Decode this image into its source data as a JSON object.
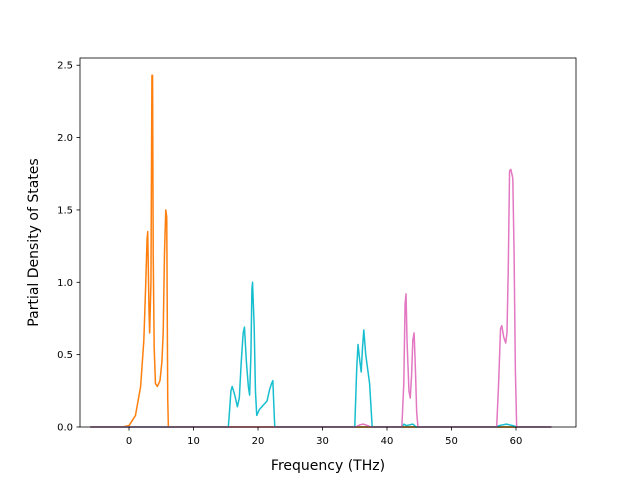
{
  "chart_data": {
    "type": "line",
    "title": "",
    "xlabel": "Frequency (THz)",
    "ylabel": "Partial Density of States",
    "xlim": [
      -7.6,
      69.3
    ],
    "ylim": [
      0,
      2.55
    ],
    "xticks": [
      0,
      10,
      20,
      30,
      40,
      50,
      60
    ],
    "yticks": [
      0.0,
      0.5,
      1.0,
      1.5,
      2.0,
      2.5
    ],
    "xtick_labels": [
      "0",
      "10",
      "20",
      "30",
      "40",
      "50",
      "60"
    ],
    "ytick_labels": [
      "0.0",
      "0.5",
      "1.0",
      "1.5",
      "2.0",
      "2.5"
    ],
    "grid": false,
    "legend": "none",
    "series": [
      {
        "color": "#2ca02c",
        "points": [
          [
            -6,
            0
          ],
          [
            65.5,
            0
          ]
        ]
      },
      {
        "color": "#ff7f0e",
        "points": [
          [
            -6,
            0
          ],
          [
            -1,
            0
          ],
          [
            0,
            0.01
          ],
          [
            1,
            0.08
          ],
          [
            1.8,
            0.28
          ],
          [
            2.3,
            0.6
          ],
          [
            2.6,
            1.0
          ],
          [
            2.8,
            1.3
          ],
          [
            2.9,
            1.35
          ],
          [
            3.1,
            0.8
          ],
          [
            3.2,
            0.65
          ],
          [
            3.4,
            1.0
          ],
          [
            3.55,
            2.43
          ],
          [
            3.65,
            2.43
          ],
          [
            3.75,
            1.2
          ],
          [
            3.9,
            0.55
          ],
          [
            4.1,
            0.3
          ],
          [
            4.4,
            0.28
          ],
          [
            4.8,
            0.32
          ],
          [
            5.1,
            0.45
          ],
          [
            5.3,
            0.65
          ],
          [
            5.5,
            1.2
          ],
          [
            5.7,
            1.5
          ],
          [
            5.85,
            1.45
          ],
          [
            6.0,
            0.2
          ],
          [
            6.1,
            0
          ],
          [
            65.5,
            0
          ]
        ]
      },
      {
        "color": "#17becf",
        "points": [
          [
            -6,
            0
          ],
          [
            15.4,
            0
          ],
          [
            15.6,
            0.12
          ],
          [
            15.8,
            0.25
          ],
          [
            16.0,
            0.28
          ],
          [
            16.4,
            0.22
          ],
          [
            16.8,
            0.14
          ],
          [
            17.1,
            0.2
          ],
          [
            17.4,
            0.45
          ],
          [
            17.7,
            0.65
          ],
          [
            17.9,
            0.69
          ],
          [
            18.2,
            0.45
          ],
          [
            18.5,
            0.28
          ],
          [
            18.7,
            0.22
          ],
          [
            18.9,
            0.5
          ],
          [
            19.05,
            0.95
          ],
          [
            19.15,
            1.0
          ],
          [
            19.4,
            0.7
          ],
          [
            19.6,
            0.25
          ],
          [
            19.8,
            0.08
          ],
          [
            20.2,
            0.12
          ],
          [
            20.8,
            0.15
          ],
          [
            21.4,
            0.18
          ],
          [
            21.8,
            0.26
          ],
          [
            22.1,
            0.3
          ],
          [
            22.3,
            0.32
          ],
          [
            22.5,
            0.1
          ],
          [
            22.6,
            0
          ],
          [
            35,
            0
          ],
          [
            35.3,
            0.4
          ],
          [
            35.5,
            0.57
          ],
          [
            35.8,
            0.45
          ],
          [
            36.0,
            0.38
          ],
          [
            36.2,
            0.55
          ],
          [
            36.4,
            0.67
          ],
          [
            36.7,
            0.5
          ],
          [
            37.0,
            0.4
          ],
          [
            37.3,
            0.3
          ],
          [
            37.5,
            0.15
          ],
          [
            37.7,
            0
          ],
          [
            42.3,
            0
          ],
          [
            42.6,
            0.02
          ],
          [
            43,
            0.01
          ],
          [
            44,
            0.02
          ],
          [
            44.5,
            0
          ],
          [
            57,
            0
          ],
          [
            57.4,
            0.01
          ],
          [
            58.5,
            0.02
          ],
          [
            59.5,
            0.01
          ],
          [
            60.1,
            0
          ],
          [
            65.5,
            0
          ]
        ]
      },
      {
        "color": "#e377c2",
        "points": [
          [
            -6,
            0
          ],
          [
            35.2,
            0
          ],
          [
            35.8,
            0.015
          ],
          [
            36.3,
            0.02
          ],
          [
            37,
            0.01
          ],
          [
            37.5,
            0
          ],
          [
            42.3,
            0
          ],
          [
            42.6,
            0.3
          ],
          [
            42.8,
            0.85
          ],
          [
            42.95,
            0.92
          ],
          [
            43.1,
            0.6
          ],
          [
            43.4,
            0.25
          ],
          [
            43.6,
            0.2
          ],
          [
            43.8,
            0.35
          ],
          [
            44.0,
            0.6
          ],
          [
            44.2,
            0.65
          ],
          [
            44.4,
            0.4
          ],
          [
            44.6,
            0.1
          ],
          [
            44.8,
            0
          ],
          [
            57,
            0
          ],
          [
            57.3,
            0.3
          ],
          [
            57.6,
            0.68
          ],
          [
            57.8,
            0.7
          ],
          [
            58.1,
            0.62
          ],
          [
            58.4,
            0.58
          ],
          [
            58.6,
            0.65
          ],
          [
            58.8,
            1.1
          ],
          [
            59.0,
            1.77
          ],
          [
            59.2,
            1.78
          ],
          [
            59.5,
            1.72
          ],
          [
            59.7,
            1.2
          ],
          [
            59.9,
            0.4
          ],
          [
            60.1,
            0
          ],
          [
            65.5,
            0
          ]
        ]
      }
    ]
  }
}
